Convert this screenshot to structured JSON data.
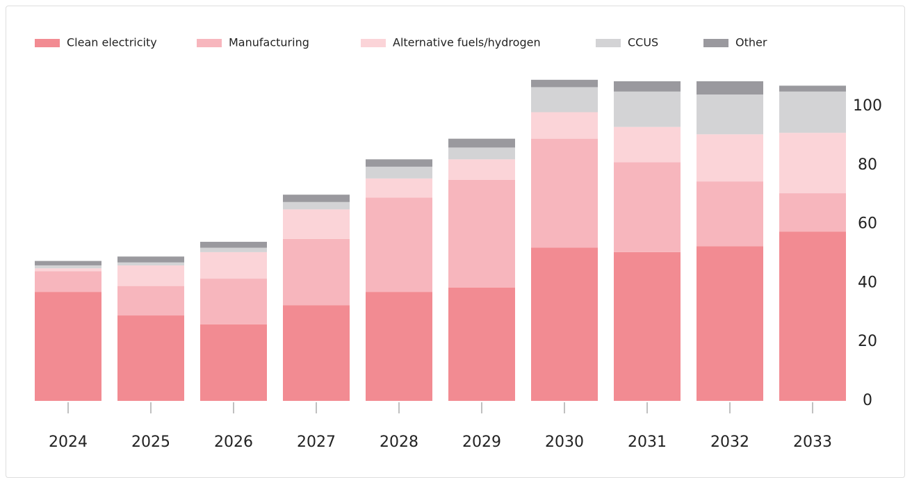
{
  "chart_data": {
    "type": "stacked-bar",
    "categories": [
      "2024",
      "2025",
      "2026",
      "2027",
      "2028",
      "2029",
      "2030",
      "2031",
      "2032",
      "2033"
    ],
    "series": [
      {
        "name": "Clean electricity",
        "color": "#f28b92",
        "values": [
          37,
          29,
          26,
          32.5,
          37,
          38.5,
          52,
          50.5,
          52.5,
          57.5
        ]
      },
      {
        "name": "Manufacturing",
        "color": "#f7b6bd",
        "values": [
          7,
          10,
          15.5,
          22.5,
          32,
          36.5,
          37,
          30.5,
          22,
          13
        ]
      },
      {
        "name": "Alternative fuels/hydrogen",
        "color": "#fbd4d8",
        "values": [
          1,
          7,
          9,
          10,
          6.5,
          7,
          9,
          12,
          16,
          20.5
        ]
      },
      {
        "name": "CCUS",
        "color": "#d3d3d5",
        "values": [
          1,
          1,
          1.5,
          2.5,
          4,
          4,
          8.5,
          12,
          13.5,
          14
        ]
      },
      {
        "name": "Other",
        "color": "#9a999e",
        "values": [
          1.5,
          2,
          2,
          2.5,
          2.5,
          3,
          2.5,
          3.5,
          4.5,
          2
        ]
      }
    ],
    "ylim": [
      0,
      110
    ],
    "yticks": [
      0,
      20,
      40,
      60,
      80,
      100
    ],
    "legend": "top-left"
  }
}
